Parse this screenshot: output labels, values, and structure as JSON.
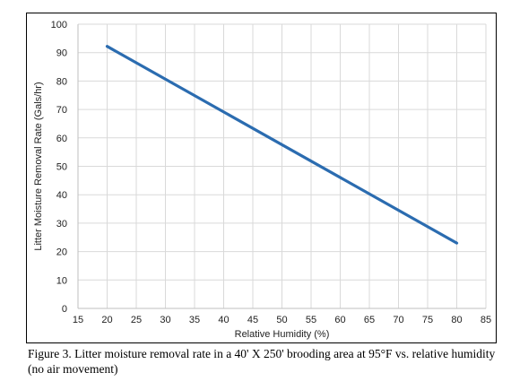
{
  "chart_data": {
    "type": "line",
    "title": "",
    "xlabel": "Relative Humidity (%)",
    "ylabel": "Litter Moisture Removal Rate (Gals/hr)",
    "xlim": [
      15,
      85
    ],
    "ylim": [
      0,
      100
    ],
    "xticks": [
      15,
      20,
      25,
      30,
      35,
      40,
      45,
      50,
      55,
      60,
      65,
      70,
      75,
      80,
      85
    ],
    "yticks": [
      0,
      10,
      20,
      30,
      40,
      50,
      60,
      70,
      80,
      90,
      100
    ],
    "grid": {
      "x": true,
      "y": true
    },
    "legend": "none",
    "series": [
      {
        "x": [
          20,
          80
        ],
        "y": [
          92.2,
          23.0
        ],
        "color": "#2b6cb0"
      }
    ]
  },
  "caption": "Figure 3.  Litter moisture removal rate in a 40' X 250' brooding area at 95°F vs. relative humidity (no air movement)"
}
